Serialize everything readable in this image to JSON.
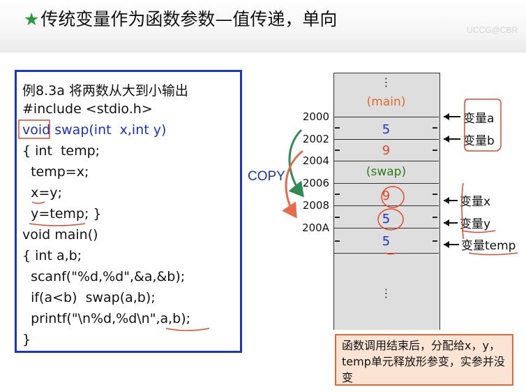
{
  "slide": {
    "title": "传统变量作为函数参数—值传递，单向",
    "watermark": "UCCG@CBR"
  },
  "code": {
    "lines": [
      "例8.3a 将两数从大到小输出",
      "#include <stdio.h>",
      "void swap(int  x,int y)",
      "{ int  temp;",
      "  temp=x;",
      "  x=y;",
      "  y=temp; }",
      "void main()",
      "{ int a,b;",
      "  scanf(\"%d,%d\",&a,&b);",
      "  if(a<b)  swap(a,b);",
      "  printf(\"\\n%d,%d\\n\",a,b);",
      "}"
    ]
  },
  "memory": {
    "addresses": [
      "2000",
      "2002",
      "2004",
      "2006",
      "2008",
      "200A"
    ],
    "cells": {
      "main_label": "(main)",
      "a_value": "5",
      "b_value": "9",
      "swap_label": "(swap)",
      "x_value": "9",
      "y_value": "5",
      "temp_value": "5",
      "dots_top": "⋮",
      "dots_bottom": "⋮"
    },
    "labels": {
      "var_a": "变量a",
      "var_b": "变量b",
      "var_x": "变量x",
      "var_y": "变量y",
      "var_temp": "变量temp"
    }
  },
  "copy_label": "COPY",
  "note": "函数调用结束后，分配给x，y，temp单元释放形参变，实参并没变",
  "colors": {
    "code_border": "#1a35c8",
    "keyword_blue": "#1a2fd0",
    "highlight_red": "#e04a2a",
    "memory_fill": "#dedede",
    "note_fill": "#fce4d4",
    "arrow_green": "#2f8a55"
  }
}
